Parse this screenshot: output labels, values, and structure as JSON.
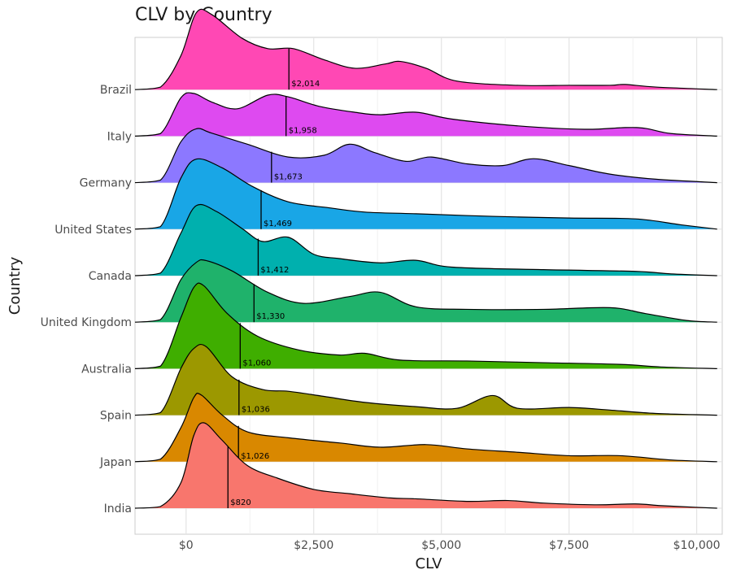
{
  "chart_data": {
    "type": "ridgeline",
    "title": "CLV by Country",
    "xlabel": "CLV",
    "ylabel": "Country",
    "xlim": [
      -1000,
      10500
    ],
    "x_ticks": [
      {
        "value": 0,
        "label": "$0"
      },
      {
        "value": 2500,
        "label": "$2,500"
      },
      {
        "value": 5000,
        "label": "$5,000"
      },
      {
        "value": 7500,
        "label": "$7,500"
      },
      {
        "value": 10000,
        "label": "$10,000"
      }
    ],
    "grid": true,
    "series": [
      {
        "name": "India",
        "color": "#F8766D",
        "median": 820,
        "median_label": "$820",
        "density": [
          [
            -1000,
            0
          ],
          [
            -500,
            0.02
          ],
          [
            -100,
            0.3
          ],
          [
            150,
            0.85
          ],
          [
            350,
            1.0
          ],
          [
            700,
            0.8
          ],
          [
            1200,
            0.5
          ],
          [
            1800,
            0.35
          ],
          [
            2500,
            0.22
          ],
          [
            3200,
            0.17
          ],
          [
            4000,
            0.12
          ],
          [
            4500,
            0.11
          ],
          [
            5500,
            0.08
          ],
          [
            6300,
            0.09
          ],
          [
            7000,
            0.06
          ],
          [
            8000,
            0.04
          ],
          [
            8800,
            0.05
          ],
          [
            9300,
            0.03
          ],
          [
            10000,
            0.01
          ],
          [
            10400,
            0
          ]
        ]
      },
      {
        "name": "Japan",
        "color": "#D98800",
        "median": 1026,
        "median_label": "$1,026",
        "density": [
          [
            -1000,
            0
          ],
          [
            -500,
            0.03
          ],
          [
            -100,
            0.4
          ],
          [
            150,
            0.75
          ],
          [
            300,
            0.78
          ],
          [
            700,
            0.55
          ],
          [
            1200,
            0.35
          ],
          [
            2000,
            0.28
          ],
          [
            3000,
            0.22
          ],
          [
            3800,
            0.17
          ],
          [
            4700,
            0.2
          ],
          [
            5500,
            0.15
          ],
          [
            6500,
            0.11
          ],
          [
            7500,
            0.07
          ],
          [
            8500,
            0.07
          ],
          [
            9500,
            0.02
          ],
          [
            10400,
            0
          ]
        ]
      },
      {
        "name": "Spain",
        "color": "#9C9800",
        "median": 1036,
        "median_label": "$1,036",
        "density": [
          [
            -1000,
            0
          ],
          [
            -500,
            0.03
          ],
          [
            -100,
            0.55
          ],
          [
            150,
            0.78
          ],
          [
            400,
            0.8
          ],
          [
            900,
            0.45
          ],
          [
            1500,
            0.3
          ],
          [
            2000,
            0.28
          ],
          [
            2700,
            0.22
          ],
          [
            3500,
            0.15
          ],
          [
            4500,
            0.1
          ],
          [
            5300,
            0.08
          ],
          [
            6000,
            0.23
          ],
          [
            6500,
            0.08
          ],
          [
            7500,
            0.09
          ],
          [
            8300,
            0.06
          ],
          [
            9200,
            0.02
          ],
          [
            10400,
            0
          ]
        ]
      },
      {
        "name": "Australia",
        "color": "#3FAE00",
        "median": 1060,
        "median_label": "$1,060",
        "density": [
          [
            -1000,
            0
          ],
          [
            -500,
            0.03
          ],
          [
            -100,
            0.6
          ],
          [
            150,
            0.95
          ],
          [
            350,
            0.97
          ],
          [
            800,
            0.65
          ],
          [
            1400,
            0.38
          ],
          [
            2200,
            0.22
          ],
          [
            3000,
            0.16
          ],
          [
            3500,
            0.18
          ],
          [
            4200,
            0.1
          ],
          [
            5500,
            0.09
          ],
          [
            7000,
            0.07
          ],
          [
            8500,
            0.05
          ],
          [
            9300,
            0.02
          ],
          [
            10400,
            0
          ]
        ]
      },
      {
        "name": "United Kingdom",
        "color": "#1FB26B",
        "median": 1330,
        "median_label": "$1,330",
        "density": [
          [
            -1000,
            0
          ],
          [
            -500,
            0.03
          ],
          [
            -100,
            0.5
          ],
          [
            200,
            0.7
          ],
          [
            400,
            0.72
          ],
          [
            900,
            0.6
          ],
          [
            1600,
            0.35
          ],
          [
            2300,
            0.22
          ],
          [
            3200,
            0.3
          ],
          [
            3800,
            0.35
          ],
          [
            4500,
            0.18
          ],
          [
            5500,
            0.15
          ],
          [
            7000,
            0.15
          ],
          [
            8300,
            0.17
          ],
          [
            9000,
            0.1
          ],
          [
            9800,
            0.02
          ],
          [
            10400,
            0
          ]
        ]
      },
      {
        "name": "Canada",
        "color": "#00B0AE",
        "median": 1412,
        "median_label": "$1,412",
        "density": [
          [
            -1000,
            0
          ],
          [
            -500,
            0.03
          ],
          [
            -100,
            0.5
          ],
          [
            200,
            0.82
          ],
          [
            600,
            0.75
          ],
          [
            1100,
            0.55
          ],
          [
            1500,
            0.4
          ],
          [
            2000,
            0.45
          ],
          [
            2500,
            0.25
          ],
          [
            3000,
            0.2
          ],
          [
            3800,
            0.15
          ],
          [
            4500,
            0.18
          ],
          [
            5200,
            0.1
          ],
          [
            7000,
            0.07
          ],
          [
            8800,
            0.05
          ],
          [
            9500,
            0.02
          ],
          [
            10400,
            0
          ]
        ]
      },
      {
        "name": "United States",
        "color": "#19A6E6",
        "median": 1469,
        "median_label": "$1,469",
        "density": [
          [
            -1000,
            0
          ],
          [
            -500,
            0.03
          ],
          [
            -100,
            0.6
          ],
          [
            200,
            0.82
          ],
          [
            700,
            0.72
          ],
          [
            1300,
            0.5
          ],
          [
            2000,
            0.32
          ],
          [
            2800,
            0.25
          ],
          [
            3500,
            0.2
          ],
          [
            4500,
            0.18
          ],
          [
            6000,
            0.15
          ],
          [
            7500,
            0.13
          ],
          [
            8800,
            0.12
          ],
          [
            9700,
            0.05
          ],
          [
            10400,
            0
          ]
        ]
      },
      {
        "name": "Germany",
        "color": "#8C78FF",
        "median": 1673,
        "median_label": "$1,673",
        "density": [
          [
            -1000,
            0
          ],
          [
            -500,
            0.03
          ],
          [
            -100,
            0.48
          ],
          [
            200,
            0.63
          ],
          [
            500,
            0.58
          ],
          [
            1200,
            0.45
          ],
          [
            2000,
            0.3
          ],
          [
            2700,
            0.32
          ],
          [
            3200,
            0.45
          ],
          [
            3700,
            0.35
          ],
          [
            4300,
            0.25
          ],
          [
            4800,
            0.3
          ],
          [
            5500,
            0.22
          ],
          [
            6200,
            0.2
          ],
          [
            6800,
            0.28
          ],
          [
            7500,
            0.2
          ],
          [
            8300,
            0.1
          ],
          [
            9200,
            0.04
          ],
          [
            10400,
            0
          ]
        ]
      },
      {
        "name": "Italy",
        "color": "#DE4AF0",
        "median": 1958,
        "median_label": "$1,958",
        "density": [
          [
            -1000,
            0
          ],
          [
            -500,
            0.03
          ],
          [
            -100,
            0.45
          ],
          [
            150,
            0.5
          ],
          [
            500,
            0.4
          ],
          [
            1000,
            0.32
          ],
          [
            1600,
            0.48
          ],
          [
            2000,
            0.46
          ],
          [
            2600,
            0.35
          ],
          [
            3300,
            0.28
          ],
          [
            3800,
            0.25
          ],
          [
            4500,
            0.28
          ],
          [
            5200,
            0.2
          ],
          [
            6500,
            0.12
          ],
          [
            7800,
            0.08
          ],
          [
            8600,
            0.1
          ],
          [
            9000,
            0.09
          ],
          [
            9500,
            0.03
          ],
          [
            10400,
            0
          ]
        ]
      },
      {
        "name": "Brazil",
        "color": "#FF48B4",
        "median": 2014,
        "median_label": "$2,014",
        "density": [
          [
            -1000,
            0
          ],
          [
            -500,
            0.03
          ],
          [
            -100,
            0.4
          ],
          [
            200,
            0.9
          ],
          [
            500,
            0.88
          ],
          [
            1100,
            0.6
          ],
          [
            1600,
            0.48
          ],
          [
            2100,
            0.48
          ],
          [
            2700,
            0.35
          ],
          [
            3300,
            0.25
          ],
          [
            3900,
            0.3
          ],
          [
            4200,
            0.33
          ],
          [
            4700,
            0.25
          ],
          [
            5300,
            0.1
          ],
          [
            6500,
            0.05
          ],
          [
            7500,
            0.05
          ],
          [
            8300,
            0.05
          ],
          [
            8600,
            0.06
          ],
          [
            9200,
            0.03
          ],
          [
            10400,
            0
          ]
        ]
      }
    ]
  }
}
